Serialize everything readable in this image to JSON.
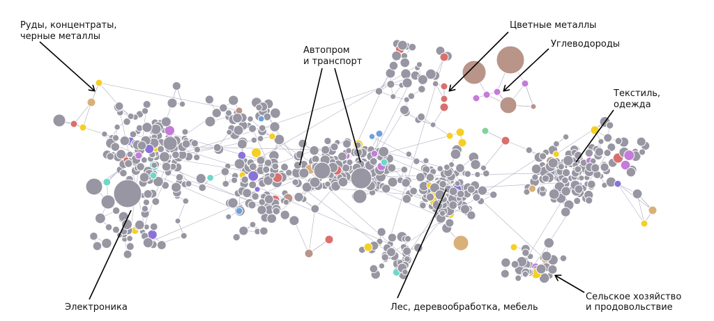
{
  "colors": {
    "default": "#9796a2",
    "edge": "#aeadc2",
    "yellow": "#f5cf25",
    "red": "#d9706e",
    "purple": "#c57bd9",
    "brown": "#b99488",
    "tan": "#d9b07a",
    "blue": "#6f9fdc",
    "teal": "#6fd8c8",
    "violet": "#8a72d9",
    "green": "#7fd49a"
  },
  "labels": {
    "ores": [
      "Руды, концентраты,",
      "черные металлы"
    ],
    "auto": [
      "Автопром",
      "и транспорт"
    ],
    "nonferrous": [
      "Цветные металлы"
    ],
    "hydrocarbons": [
      "Углеводороды"
    ],
    "textile": [
      "Текстиль,",
      "одежда"
    ],
    "electronics": [
      "Электроника"
    ],
    "forest": [
      "Лес, деревообработка, мебель"
    ],
    "agri": [
      "Сельское хозяйство",
      "и продовольствие"
    ]
  }
}
